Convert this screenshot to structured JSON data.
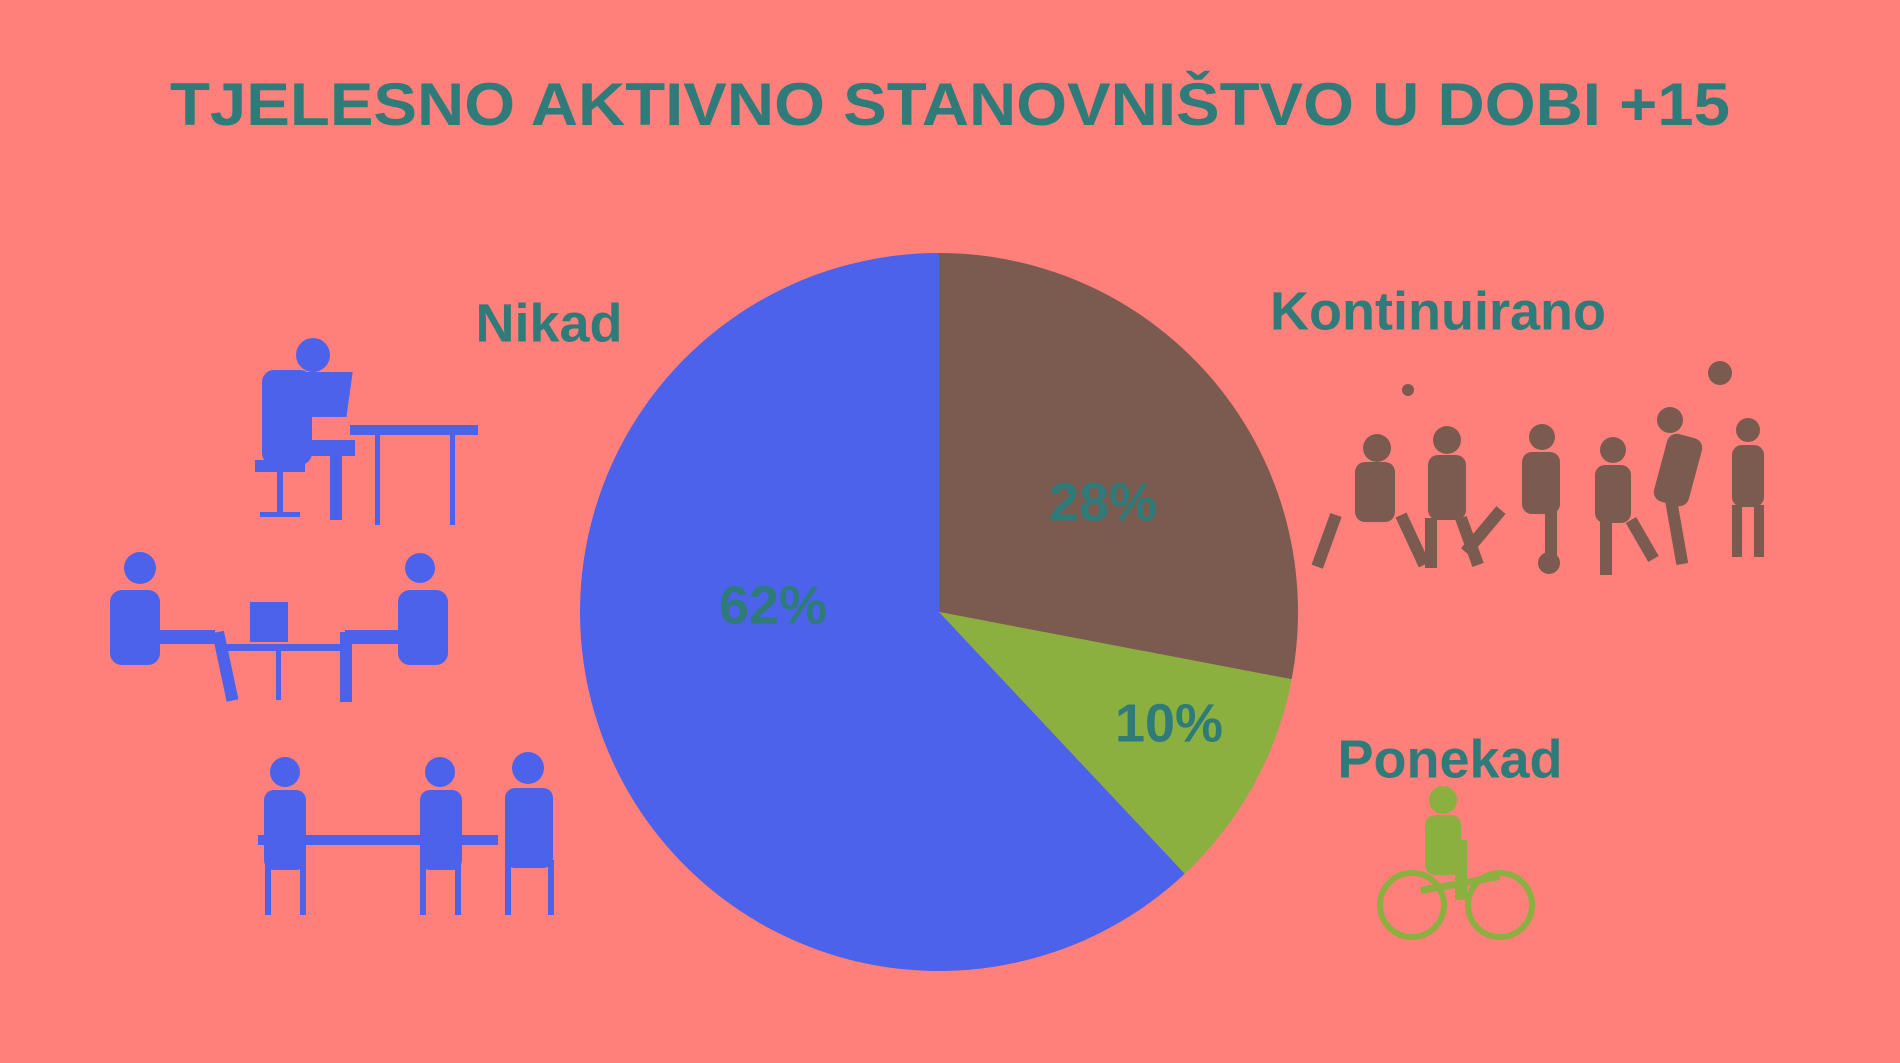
{
  "chart_data": {
    "type": "pie",
    "title": "TJELESNO AKTIVNO STANOVNIŠTVO U DOBI +15",
    "categories": [
      "Kontinuirano",
      "Ponekad",
      "Nikad"
    ],
    "values": [
      28,
      10,
      62
    ],
    "value_labels": [
      "28%",
      "10%",
      "62%"
    ],
    "colors": [
      "#7b5a50",
      "#8bb040",
      "#4c62eb"
    ]
  }
}
